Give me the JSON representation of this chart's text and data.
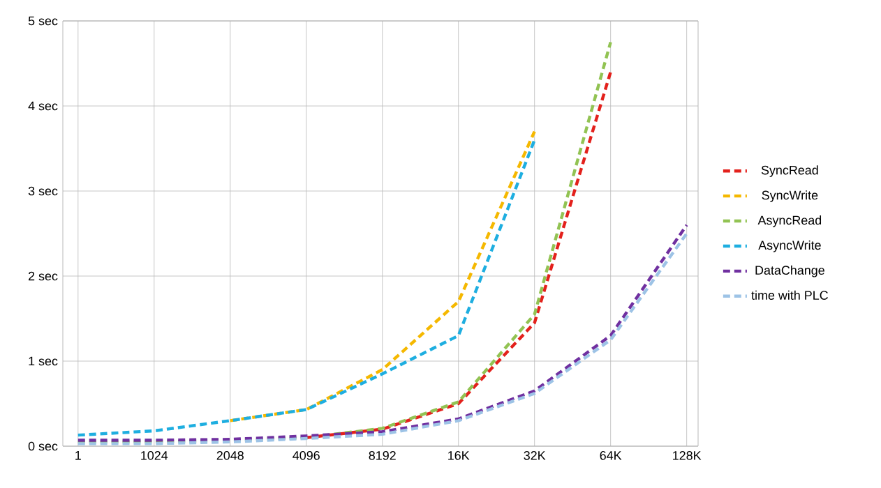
{
  "chart_data": {
    "type": "line",
    "categories": [
      "1",
      "1024",
      "2048",
      "4096",
      "8192",
      "16K",
      "32K",
      "64K",
      "128K"
    ],
    "series": [
      {
        "name": "SyncRead",
        "color": "#e3211c",
        "values": [
          null,
          null,
          null,
          0.1,
          0.2,
          0.5,
          1.45,
          4.4,
          null
        ]
      },
      {
        "name": "SyncWrite",
        "color": "#f5b800",
        "values": [
          null,
          null,
          0.3,
          0.43,
          0.9,
          1.7,
          3.7,
          null,
          null
        ]
      },
      {
        "name": "AsyncRead",
        "color": "#92c353",
        "values": [
          0.05,
          0.05,
          0.07,
          0.1,
          0.21,
          0.52,
          1.55,
          4.75,
          null
        ]
      },
      {
        "name": "AsyncWrite",
        "color": "#1eaee0",
        "values": [
          0.13,
          0.18,
          0.3,
          0.43,
          0.85,
          1.3,
          3.6,
          null,
          null
        ]
      },
      {
        "name": "DataChange",
        "color": "#7030a0",
        "values": [
          0.07,
          0.07,
          0.08,
          0.12,
          0.17,
          0.32,
          0.65,
          1.3,
          2.6
        ]
      },
      {
        "name": "time with PLC",
        "color": "#9dc3e6",
        "values": [
          0.03,
          0.03,
          0.05,
          0.09,
          0.14,
          0.3,
          0.62,
          1.25,
          2.5
        ]
      }
    ],
    "ylim": [
      0,
      5
    ],
    "yticks": [
      {
        "value": 0,
        "label": "0 sec"
      },
      {
        "value": 1,
        "label": "1 sec"
      },
      {
        "value": 2,
        "label": "2 sec"
      },
      {
        "value": 3,
        "label": "3 sec"
      },
      {
        "value": 4,
        "label": "4 sec"
      },
      {
        "value": 5,
        "label": "5 sec"
      }
    ],
    "grid": true,
    "legend": "right",
    "line_style": "dashed"
  }
}
